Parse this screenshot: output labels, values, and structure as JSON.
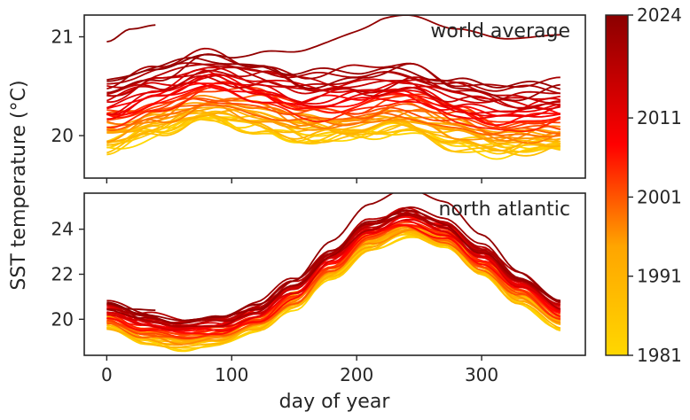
{
  "figure": {
    "ylabel": "SST temperature (°C)",
    "xlabel": "day of year"
  },
  "chart_data": [
    {
      "type": "line",
      "panel": "top",
      "annotation": "world average",
      "xlim": [
        -18,
        383
      ],
      "ylim": [
        19.57,
        21.22
      ],
      "xticks": [
        0,
        100,
        200,
        300
      ],
      "yticks": [
        20,
        21
      ],
      "ytick_labels": [
        "20",
        "21"
      ],
      "grid": false,
      "series_note": "one line per year 1981-2024, colored by year",
      "mean_curve": {
        "day": [
          0,
          40,
          80,
          120,
          160,
          200,
          240,
          280,
          320,
          365
        ],
        "value": [
          20.05,
          20.17,
          20.32,
          20.25,
          20.12,
          20.14,
          20.22,
          20.08,
          19.98,
          20.02
        ]
      },
      "year_range": [
        1981,
        2024
      ],
      "values_start_1981": 19.88,
      "values_start_2023": 20.55,
      "highlight_2023_peak": 21.05,
      "partial_year_2024": {
        "days": [
          0,
          20,
          40
        ],
        "value": [
          20.95,
          21.08,
          21.12
        ]
      }
    },
    {
      "type": "line",
      "panel": "bottom",
      "annotation": "north atlantic",
      "xlim": [
        -18,
        383
      ],
      "ylim": [
        18.4,
        25.6
      ],
      "xticks": [
        0,
        100,
        200,
        300
      ],
      "xtick_labels": [
        "0",
        "100",
        "200",
        "300"
      ],
      "yticks": [
        20,
        22,
        24
      ],
      "ytick_labels": [
        "20",
        "22",
        "24"
      ],
      "grid": false,
      "mean_curve": {
        "day": [
          0,
          30,
          60,
          90,
          120,
          150,
          180,
          210,
          240,
          270,
          300,
          330,
          365
        ],
        "value": [
          20.1,
          19.55,
          19.3,
          19.45,
          20.0,
          21.05,
          22.4,
          23.7,
          24.25,
          23.75,
          22.55,
          21.3,
          20.15
        ]
      },
      "year_range": [
        1981,
        2024
      ],
      "values_start_1981": 19.6,
      "values_start_2023": 20.75,
      "highlight_2023_peak": 25.3,
      "partial_year_2024": {
        "days": [
          0,
          20,
          40
        ],
        "value": [
          20.7,
          20.45,
          20.4
        ]
      }
    }
  ],
  "colorbar": {
    "min": 1981,
    "max": 2024,
    "ticks": [
      1981,
      1991,
      2001,
      2011,
      2024
    ],
    "tick_labels": [
      "1981",
      "1991",
      "2001",
      "2011",
      "2024"
    ],
    "colormap": [
      "#ffd700",
      "#ffa500",
      "#ff0000",
      "#8b0000"
    ]
  }
}
